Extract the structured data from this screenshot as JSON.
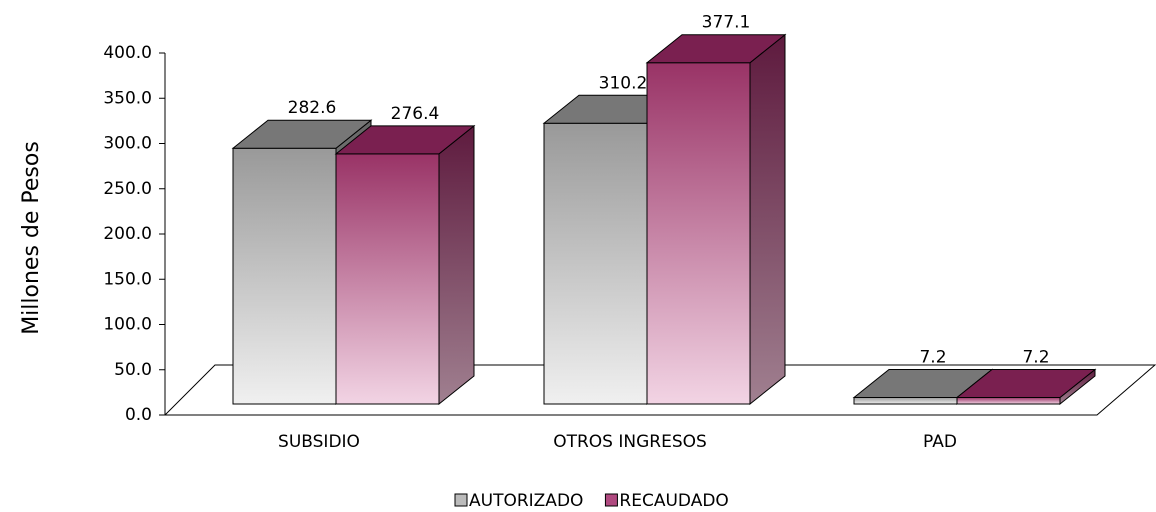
{
  "chart_data": {
    "type": "bar3d",
    "y_label": "Millones de Pesos",
    "categories": [
      "SUBSIDIO",
      "OTROS INGRESOS",
      "PAD"
    ],
    "series": [
      {
        "name": "AUTORIZADO",
        "color": "#a0a0a0",
        "values": [
          282.6,
          310.2,
          7.2
        ]
      },
      {
        "name": "RECAUDADO",
        "color": "#993366",
        "values": [
          276.4,
          377.1,
          7.2
        ]
      }
    ],
    "ylim": [
      0,
      400
    ],
    "yticks": [
      {
        "value": 0,
        "label": "0.0"
      },
      {
        "value": 50,
        "label": "50.0"
      },
      {
        "value": 100,
        "label": "100.0"
      },
      {
        "value": 150,
        "label": "150.0"
      },
      {
        "value": 200,
        "label": "200.0"
      },
      {
        "value": 250,
        "label": "250.0"
      },
      {
        "value": 300,
        "label": "300.0"
      },
      {
        "value": 350,
        "label": "350.0"
      },
      {
        "value": 400,
        "label": "400.0"
      }
    ],
    "legend": "bottom"
  }
}
